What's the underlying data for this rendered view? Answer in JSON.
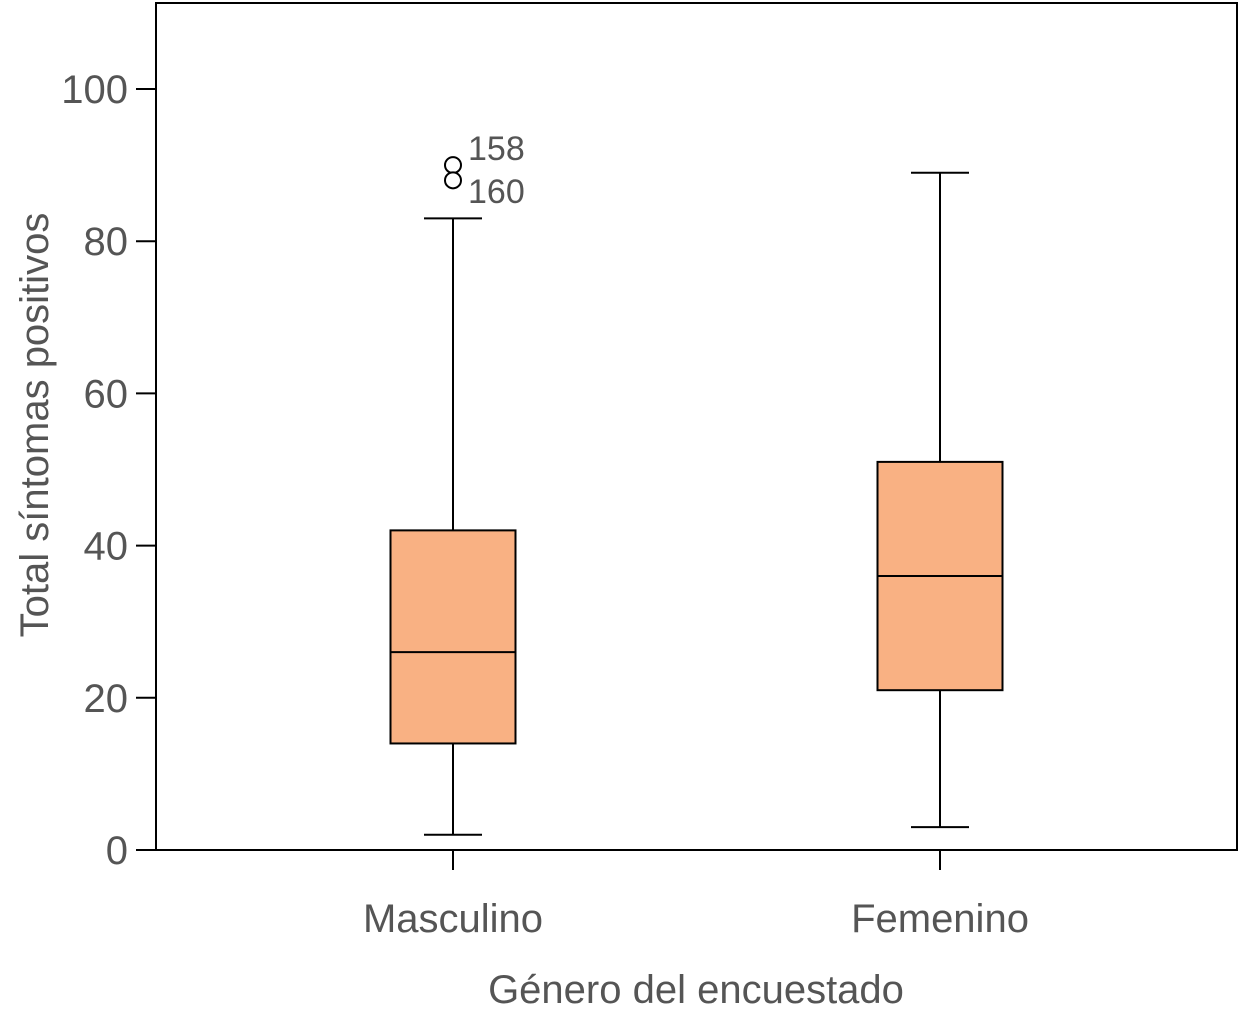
{
  "chart_data": {
    "type": "boxplot",
    "title": "",
    "xlabel": "Género del encuestado",
    "ylabel": "Total síntomas positivos",
    "ylim": [
      0,
      111
    ],
    "yticks": [
      0,
      20,
      40,
      60,
      80,
      100
    ],
    "ytick_labels": [
      "0",
      "20",
      "40",
      "60",
      "80",
      "100"
    ],
    "grid": false,
    "fill_color": "#F9B183",
    "categories": [
      "Masculino",
      "Femenino"
    ],
    "boxes": [
      {
        "name": "Masculino",
        "min": 2,
        "q1": 14,
        "median": 26,
        "q3": 42,
        "max": 83,
        "outliers": [
          {
            "value": 90,
            "label": "158"
          },
          {
            "value": 88,
            "label": "160"
          }
        ]
      },
      {
        "name": "Femenino",
        "min": 3,
        "q1": 21,
        "median": 36,
        "q3": 51,
        "max": 89,
        "outliers": []
      }
    ]
  }
}
